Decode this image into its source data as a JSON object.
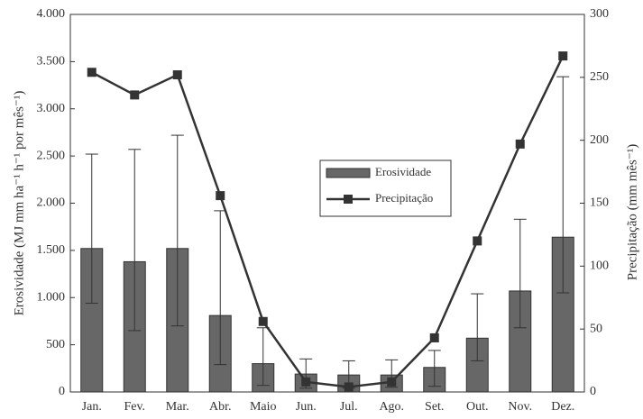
{
  "chart_data": {
    "type": "bar-line",
    "categories": [
      "Jan.",
      "Fev.",
      "Mar.",
      "Abr.",
      "Maio",
      "Jun.",
      "Jul.",
      "Ago.",
      "Set.",
      "Out.",
      "Nov.",
      "Dez."
    ],
    "y_label": "Erosividade (MJ mm ha⁻¹ h⁻¹ por mês⁻¹)",
    "y2_label": "Precipitação (mm mês⁻¹)",
    "ylim": [
      0,
      4000
    ],
    "yticks": [
      0,
      500,
      {
        "value": 1000,
        "label": "1.000"
      },
      {
        "value": 1500,
        "label": "1.500"
      },
      {
        "value": 2000,
        "label": "2.000"
      },
      {
        "value": 2500,
        "label": "2.500"
      },
      {
        "value": 3000,
        "label": "3.000"
      },
      {
        "value": 3500,
        "label": "3.500"
      },
      {
        "value": 4000,
        "label": "4.000"
      }
    ],
    "y2lim": [
      0,
      300
    ],
    "y2ticks": [
      0,
      50,
      100,
      150,
      200,
      250,
      300
    ],
    "series": [
      {
        "name": "Erosividade",
        "type": "bar",
        "color": "#676767",
        "values": [
          1520,
          1380,
          1520,
          810,
          300,
          190,
          180,
          180,
          260,
          570,
          1070,
          1640
        ],
        "upper": [
          2520,
          2570,
          2720,
          1920,
          680,
          350,
          330,
          340,
          440,
          1040,
          1830,
          3340
        ],
        "lower": [
          940,
          650,
          700,
          290,
          70,
          40,
          40,
          50,
          60,
          330,
          680,
          1050
        ]
      },
      {
        "name": "Precipitação",
        "type": "line",
        "axis": "y2",
        "color": "#333333",
        "values": [
          254,
          236,
          252,
          156,
          56,
          8,
          4,
          8,
          43,
          120,
          197,
          267
        ]
      }
    ]
  }
}
